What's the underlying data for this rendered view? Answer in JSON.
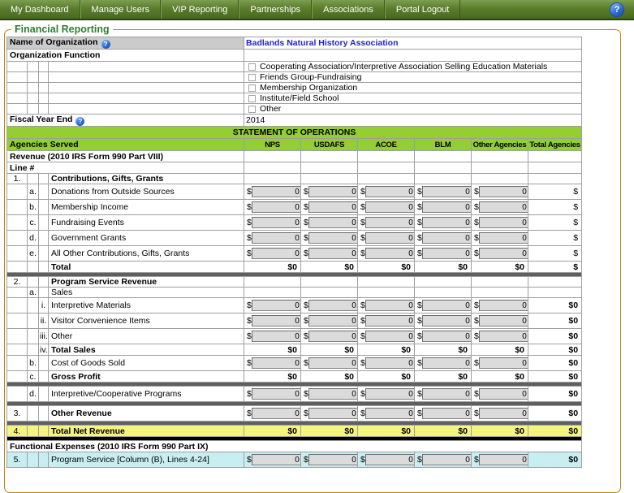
{
  "nav": {
    "items": [
      "My Dashboard",
      "Manage Users",
      "VIP Reporting",
      "Partnerships",
      "Associations",
      "Portal Logout"
    ],
    "help_icon": "?"
  },
  "page": {
    "legend": "Financial Reporting"
  },
  "colors": {
    "nav_green": "#5a7d2c",
    "table_header_green": "#94CE31",
    "highlight_yellow": "#F5F57E",
    "highlight_cyan": "#C9EEF1",
    "label_grey": "#CBCBCB",
    "link_blue": "#2323CB",
    "fieldset_border": "#B8860B",
    "separator_grey": "#5F5F5F",
    "separator_black": "#000000",
    "input_grey": "#DBDBDB"
  },
  "table": {
    "currency_symbol": "$",
    "agencies_served_label": "Agencies Served",
    "columns": [
      "NPS",
      "USDAFS",
      "ACOE",
      "BLM",
      "Other Agencies",
      "Total Agencies"
    ],
    "rows": [
      {
        "type": "kv",
        "label": "Name of Organization",
        "help": true,
        "grey": true,
        "value": "Badlands Natural History Association",
        "blue": true
      },
      {
        "type": "kv",
        "label": "Organization Function",
        "value": ""
      },
      {
        "type": "checkbox",
        "label": "Cooperating Association/Interpretive Association Selling Education Materials"
      },
      {
        "type": "checkbox",
        "label": "Friends Group-Fundraising"
      },
      {
        "type": "checkbox",
        "label": "Membership Organization"
      },
      {
        "type": "checkbox",
        "label": "Institute/Field School"
      },
      {
        "type": "checkbox",
        "label": "Other"
      },
      {
        "type": "kv",
        "label": "Fiscal Year End",
        "help": true,
        "value": "2014"
      },
      {
        "type": "title",
        "label": "STATEMENT OF OPERATIONS"
      },
      {
        "type": "colheader"
      },
      {
        "type": "group",
        "label": "Revenue (2010 IRS Form 990 Part VIII)",
        "cells": true
      },
      {
        "type": "group",
        "label": "Line #",
        "cells": true
      },
      {
        "type": "heading",
        "num": "1.",
        "label": "Contributions, Gifts, Grants"
      },
      {
        "type": "input",
        "letter": "a.",
        "label": "Donations from Outside Sources",
        "values": [
          "0",
          "0",
          "0",
          "0",
          "0"
        ],
        "total": "$"
      },
      {
        "type": "input",
        "letter": "b.",
        "label": "Membership Income",
        "values": [
          "0",
          "0",
          "0",
          "0",
          "0"
        ],
        "total": "$"
      },
      {
        "type": "input",
        "letter": "c.",
        "label": "Fundraising Events",
        "values": [
          "0",
          "0",
          "0",
          "0",
          "0"
        ],
        "total": "$"
      },
      {
        "type": "input",
        "letter": "d.",
        "label": "Government Grants",
        "values": [
          "0",
          "0",
          "0",
          "0",
          "0"
        ],
        "total": "$"
      },
      {
        "type": "input",
        "letter": "e.",
        "label": "All Other Contributions, Gifts, Grants",
        "values": [
          "0",
          "0",
          "0",
          "0",
          "0"
        ],
        "total": "$"
      },
      {
        "type": "calc",
        "label": "Total",
        "indent": true,
        "values": [
          "$0",
          "$0",
          "$0",
          "$0",
          "$0"
        ],
        "total": "$"
      },
      {
        "type": "sep"
      },
      {
        "type": "heading",
        "num": "2.",
        "label": "Program Service Revenue"
      },
      {
        "type": "subheading",
        "letter": "a.",
        "label": "Sales"
      },
      {
        "type": "input",
        "roman": "i.",
        "label": "Interpretive Materials",
        "values": [
          "0",
          "0",
          "0",
          "0",
          "0"
        ],
        "total": "$0"
      },
      {
        "type": "input",
        "roman": "ii.",
        "label": "Visitor Convenience Items",
        "values": [
          "0",
          "0",
          "0",
          "0",
          "0"
        ],
        "total": "$0"
      },
      {
        "type": "input",
        "roman": "iii.",
        "label": "Other",
        "values": [
          "0",
          "0",
          "0",
          "0",
          "0"
        ],
        "total": "$0"
      },
      {
        "type": "calc",
        "roman": "iv.",
        "label": "Total Sales",
        "indent": true,
        "values": [
          "$0",
          "$0",
          "$0",
          "$0",
          "$0"
        ],
        "total": "$0"
      },
      {
        "type": "input",
        "letter": "b.",
        "label": "Cost of Goods Sold",
        "values": [
          "0",
          "0",
          "0",
          "0",
          "0"
        ],
        "total": "$0"
      },
      {
        "type": "calc",
        "letter": "c.",
        "label": "Gross Profit",
        "indent": true,
        "values": [
          "$0",
          "$0",
          "$0",
          "$0",
          "$0"
        ],
        "total": "$0"
      },
      {
        "type": "sep"
      },
      {
        "type": "input",
        "letter": "d.",
        "label": "Interpretive/Cooperative Programs",
        "values": [
          "0",
          "0",
          "0",
          "0",
          "0"
        ],
        "total": "$0"
      },
      {
        "type": "sep"
      },
      {
        "type": "input",
        "num": "3.",
        "label": "Other Revenue",
        "bold": true,
        "values": [
          "0",
          "0",
          "0",
          "0",
          "0"
        ],
        "total": "$0"
      },
      {
        "type": "sep"
      },
      {
        "type": "calc",
        "num": "4.",
        "label": "Total Net Revenue",
        "bg": "yellow",
        "values": [
          "$0",
          "$0",
          "$0",
          "$0",
          "$0"
        ],
        "total": "$0"
      },
      {
        "type": "sep-black"
      },
      {
        "type": "group",
        "label": "Functional Expenses (2010 IRS Form 990 Part IX)",
        "cells": false
      },
      {
        "type": "input",
        "num": "5.",
        "label": "Program Service [Column (B), Lines 4-24]",
        "bg": "cyan",
        "values": [
          "0",
          "0",
          "0",
          "0",
          "0"
        ],
        "total": "$0"
      }
    ]
  }
}
